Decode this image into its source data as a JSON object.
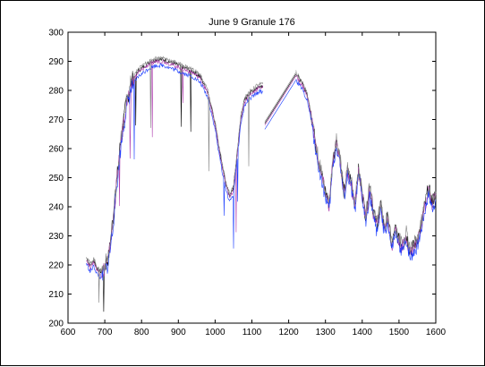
{
  "chart_data": {
    "type": "line",
    "title": "June 9 Granule 176",
    "xlabel": "",
    "ylabel": "",
    "xlim": [
      600,
      1600
    ],
    "ylim": [
      200,
      300
    ],
    "x_ticks": [
      600,
      700,
      800,
      900,
      1000,
      1100,
      1200,
      1300,
      1400,
      1500,
      1600
    ],
    "y_ticks": [
      200,
      210,
      220,
      230,
      240,
      250,
      260,
      270,
      280,
      290,
      300
    ],
    "grid": false,
    "legend": "none",
    "colors": {
      "black": "#000000",
      "blue": "#1a3cff",
      "magenta": "#b040b0",
      "gray": "#808080"
    },
    "spectrum_segments": [
      [
        [
          650,
          222
        ],
        [
          660,
          219
        ],
        [
          670,
          221
        ],
        [
          680,
          218
        ],
        [
          690,
          217
        ],
        [
          700,
          219
        ],
        [
          710,
          222
        ],
        [
          720,
          232
        ],
        [
          730,
          245
        ],
        [
          740,
          258
        ],
        [
          750,
          268
        ],
        [
          760,
          276
        ],
        [
          770,
          281
        ],
        [
          780,
          284
        ],
        [
          790,
          286
        ],
        [
          800,
          287
        ],
        [
          820,
          289
        ],
        [
          840,
          290
        ],
        [
          860,
          290
        ],
        [
          880,
          289
        ],
        [
          900,
          288
        ],
        [
          920,
          287
        ],
        [
          940,
          286
        ],
        [
          960,
          284
        ],
        [
          980,
          279
        ],
        [
          1000,
          268
        ],
        [
          1010,
          260
        ],
        [
          1020,
          253
        ],
        [
          1030,
          247
        ],
        [
          1040,
          243
        ],
        [
          1050,
          246
        ],
        [
          1060,
          258
        ],
        [
          1070,
          270
        ],
        [
          1080,
          276
        ],
        [
          1090,
          278
        ],
        [
          1100,
          279
        ],
        [
          1110,
          280
        ],
        [
          1120,
          281
        ],
        [
          1130,
          281
        ]
      ],
      [
        [
          1135,
          268
        ],
        [
          1150,
          271
        ],
        [
          1170,
          275
        ],
        [
          1190,
          279
        ],
        [
          1210,
          283
        ],
        [
          1220,
          285
        ]
      ],
      [
        [
          1220,
          285
        ],
        [
          1230,
          283
        ],
        [
          1240,
          281
        ],
        [
          1250,
          278
        ],
        [
          1260,
          272
        ],
        [
          1270,
          264
        ],
        [
          1280,
          256
        ],
        [
          1290,
          250
        ],
        [
          1300,
          245
        ],
        [
          1310,
          240
        ],
        [
          1320,
          255
        ],
        [
          1330,
          262
        ],
        [
          1340,
          256
        ],
        [
          1350,
          244
        ],
        [
          1360,
          252
        ],
        [
          1370,
          248
        ],
        [
          1380,
          240
        ],
        [
          1390,
          252
        ],
        [
          1400,
          244
        ],
        [
          1410,
          236
        ],
        [
          1420,
          246
        ],
        [
          1430,
          238
        ],
        [
          1440,
          233
        ],
        [
          1450,
          240
        ],
        [
          1460,
          232
        ],
        [
          1470,
          236
        ],
        [
          1480,
          226
        ],
        [
          1490,
          232
        ],
        [
          1500,
          228
        ],
        [
          1510,
          226
        ],
        [
          1520,
          230
        ],
        [
          1530,
          224
        ],
        [
          1540,
          226
        ],
        [
          1550,
          228
        ],
        [
          1560,
          233
        ],
        [
          1570,
          240
        ],
        [
          1580,
          246
        ],
        [
          1590,
          241
        ],
        [
          1600,
          244
        ]
      ]
    ],
    "series": [
      {
        "color": "#000000",
        "offset": 0.6
      },
      {
        "color": "#b040b0",
        "offset": 0.0
      },
      {
        "color": "#1a3cff",
        "offset": -1.4
      },
      {
        "color": "#808080",
        "offset": 1.2
      }
    ]
  }
}
